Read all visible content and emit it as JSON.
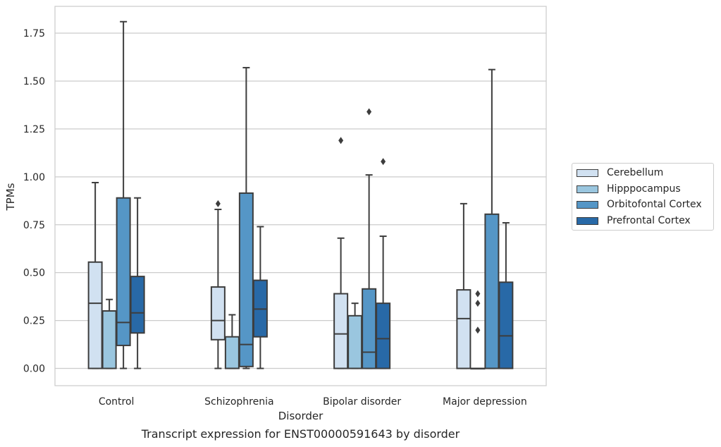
{
  "chart_data": {
    "type": "box",
    "title": "",
    "caption": "Transcript expression for ENST00000591643 by disorder",
    "xlabel": "Disorder",
    "ylabel": "TPMs",
    "ylim": [
      -0.09,
      1.89
    ],
    "yticks": [
      "0.00",
      "0.25",
      "0.50",
      "0.75",
      "1.00",
      "1.25",
      "1.50",
      "1.75"
    ],
    "grid": true,
    "legend_position": "right",
    "categories": [
      "Control",
      "Schizophrenia",
      "Bipolar disorder",
      "Major depression"
    ],
    "series": [
      {
        "name": "Cerebellum",
        "color": "#d1e1f1",
        "boxes": [
          {
            "whislo": 0.0,
            "q1": 0.0,
            "med": 0.34,
            "q3": 0.555,
            "whishi": 0.97,
            "fliers": []
          },
          {
            "whislo": 0.0,
            "q1": 0.15,
            "med": 0.25,
            "q3": 0.425,
            "whishi": 0.83,
            "fliers": [
              0.86
            ]
          },
          {
            "whislo": 0.0,
            "q1": 0.0,
            "med": 0.18,
            "q3": 0.39,
            "whishi": 0.68,
            "fliers": [
              1.19
            ]
          },
          {
            "whislo": 0.0,
            "q1": 0.0,
            "med": 0.26,
            "q3": 0.41,
            "whishi": 0.86,
            "fliers": []
          }
        ]
      },
      {
        "name": "Hipppocampus",
        "color": "#9ac6df",
        "boxes": [
          {
            "whislo": 0.0,
            "q1": 0.0,
            "med": 0.3,
            "q3": 0.3,
            "whishi": 0.36,
            "fliers": []
          },
          {
            "whislo": 0.0,
            "q1": 0.0,
            "med": 0.0,
            "q3": 0.165,
            "whishi": 0.28,
            "fliers": []
          },
          {
            "whislo": 0.0,
            "q1": 0.0,
            "med": 0.0,
            "q3": 0.275,
            "whishi": 0.34,
            "fliers": []
          },
          {
            "whislo": 0.0,
            "q1": 0.0,
            "med": 0.0,
            "q3": 0.0,
            "whishi": 0.0,
            "fliers": [
              0.2,
              0.34,
              0.39
            ]
          }
        ]
      },
      {
        "name": "Orbitofontal Cortex",
        "color": "#5596c6",
        "boxes": [
          {
            "whislo": 0.0,
            "q1": 0.12,
            "med": 0.24,
            "q3": 0.89,
            "whishi": 1.81,
            "fliers": []
          },
          {
            "whislo": 0.0,
            "q1": 0.01,
            "med": 0.125,
            "q3": 0.915,
            "whishi": 1.57,
            "fliers": []
          },
          {
            "whislo": 0.0,
            "q1": 0.0,
            "med": 0.085,
            "q3": 0.415,
            "whishi": 1.01,
            "fliers": [
              1.34
            ]
          },
          {
            "whislo": 0.0,
            "q1": 0.0,
            "med": 0.0,
            "q3": 0.805,
            "whishi": 1.56,
            "fliers": []
          }
        ]
      },
      {
        "name": "Prefrontal Cortex",
        "color": "#2869a7",
        "boxes": [
          {
            "whislo": 0.0,
            "q1": 0.185,
            "med": 0.29,
            "q3": 0.48,
            "whishi": 0.89,
            "fliers": []
          },
          {
            "whislo": 0.0,
            "q1": 0.165,
            "med": 0.31,
            "q3": 0.46,
            "whishi": 0.74,
            "fliers": []
          },
          {
            "whislo": 0.0,
            "q1": 0.0,
            "med": 0.155,
            "q3": 0.34,
            "whishi": 0.69,
            "fliers": [
              1.08
            ]
          },
          {
            "whislo": 0.0,
            "q1": 0.0,
            "med": 0.17,
            "q3": 0.45,
            "whishi": 0.76,
            "fliers": []
          }
        ]
      }
    ]
  }
}
